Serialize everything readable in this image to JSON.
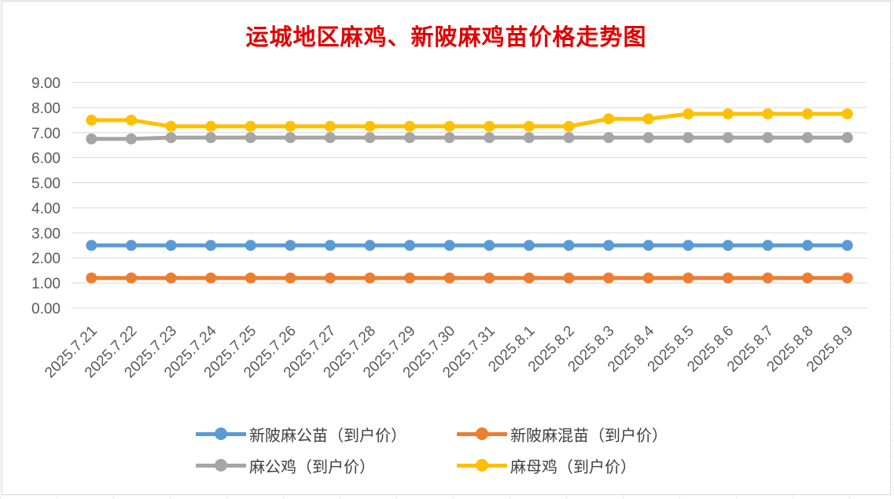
{
  "chart_data": {
    "type": "line",
    "title": "运城地区麻鸡、新陂麻鸡苗价格走势图",
    "title_color": "#e00000",
    "xlabel": "",
    "ylabel": "",
    "ylim": [
      0,
      9
    ],
    "yticks": [
      "0.00",
      "1.00",
      "2.00",
      "3.00",
      "4.00",
      "5.00",
      "6.00",
      "7.00",
      "8.00",
      "9.00"
    ],
    "grid": true,
    "legend_position": "bottom",
    "categories": [
      "2025.7.21",
      "2025.7.22",
      "2025.7.23",
      "2025.7.24",
      "2025.7.25",
      "2025.7.26",
      "2025.7.27",
      "2025.7.28",
      "2025.7.29",
      "2025.7.30",
      "2025.7.31",
      "2025.8.1",
      "2025.8.2",
      "2025.8.3",
      "2025.8.4",
      "2025.8.5",
      "2025.8.6",
      "2025.8.7",
      "2025.8.8",
      "2025.8.9"
    ],
    "series": [
      {
        "name": "新陂麻公苗（到户价）",
        "color": "#5b9bd5",
        "values": [
          2.5,
          2.5,
          2.5,
          2.5,
          2.5,
          2.5,
          2.5,
          2.5,
          2.5,
          2.5,
          2.5,
          2.5,
          2.5,
          2.5,
          2.5,
          2.5,
          2.5,
          2.5,
          2.5,
          2.5
        ]
      },
      {
        "name": "新陂麻混苗（到户价）",
        "color": "#ed7d31",
        "values": [
          1.2,
          1.2,
          1.2,
          1.2,
          1.2,
          1.2,
          1.2,
          1.2,
          1.2,
          1.2,
          1.2,
          1.2,
          1.2,
          1.2,
          1.2,
          1.2,
          1.2,
          1.2,
          1.2,
          1.2
        ]
      },
      {
        "name": "麻公鸡（到户价）",
        "color": "#a5a5a5",
        "values": [
          6.75,
          6.75,
          6.8,
          6.8,
          6.8,
          6.8,
          6.8,
          6.8,
          6.8,
          6.8,
          6.8,
          6.8,
          6.8,
          6.8,
          6.8,
          6.8,
          6.8,
          6.8,
          6.8,
          6.8
        ]
      },
      {
        "name": "麻母鸡（到户价）",
        "color": "#ffc000",
        "values": [
          7.5,
          7.5,
          7.25,
          7.25,
          7.25,
          7.25,
          7.25,
          7.25,
          7.25,
          7.25,
          7.25,
          7.25,
          7.25,
          7.55,
          7.55,
          7.75,
          7.75,
          7.75,
          7.75,
          7.75
        ]
      }
    ]
  }
}
